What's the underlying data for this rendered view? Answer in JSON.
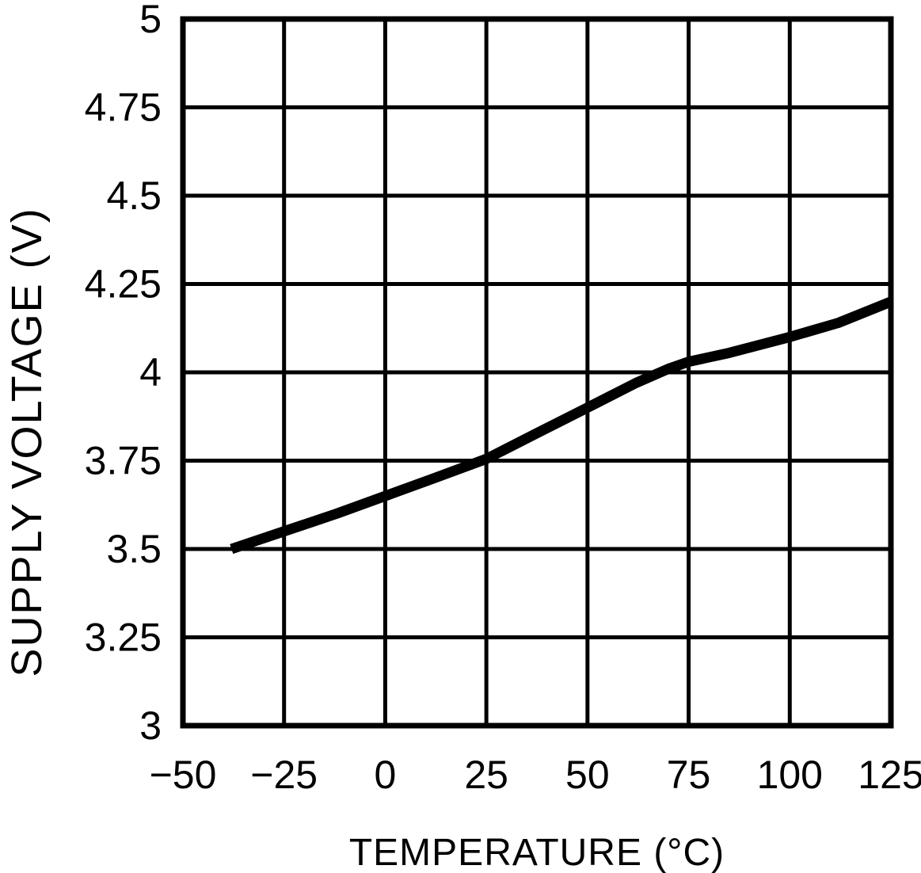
{
  "chart_data": {
    "type": "line",
    "title": "",
    "xlabel": "TEMPERATURE (°C)",
    "ylabel": "SUPPLY VOLTAGE (V)",
    "xlim": [
      -50,
      125
    ],
    "ylim": [
      3,
      5
    ],
    "grid": true,
    "legend_position": "none",
    "background_color": "#ffffff",
    "line_color": "#000000",
    "grid_color": "#000000",
    "x_ticks": [
      {
        "value": -50,
        "label": "−50"
      },
      {
        "value": -25,
        "label": "−25"
      },
      {
        "value": 0,
        "label": "0"
      },
      {
        "value": 25,
        "label": "25"
      },
      {
        "value": 50,
        "label": "50"
      },
      {
        "value": 75,
        "label": "75"
      },
      {
        "value": 100,
        "label": "100"
      },
      {
        "value": 125,
        "label": "125"
      }
    ],
    "y_ticks": [
      {
        "value": 3,
        "label": "3"
      },
      {
        "value": 3.25,
        "label": "3.25"
      },
      {
        "value": 3.5,
        "label": "3.5"
      },
      {
        "value": 3.75,
        "label": "3.75"
      },
      {
        "value": 4,
        "label": "4"
      },
      {
        "value": 4.25,
        "label": "4.25"
      },
      {
        "value": 4.5,
        "label": "4.5"
      },
      {
        "value": 4.75,
        "label": "4.75"
      },
      {
        "value": 5,
        "label": "5"
      }
    ],
    "series": [
      {
        "name": "supply_voltage_vs_temperature",
        "color": "#000000",
        "points": [
          [
            -38,
            3.5
          ],
          [
            -25,
            3.55
          ],
          [
            -12,
            3.6
          ],
          [
            0,
            3.65
          ],
          [
            12,
            3.7
          ],
          [
            25,
            3.755
          ],
          [
            37,
            3.825
          ],
          [
            50,
            3.9
          ],
          [
            62,
            3.97
          ],
          [
            70,
            4.01
          ],
          [
            75,
            4.03
          ],
          [
            85,
            4.055
          ],
          [
            100,
            4.1
          ],
          [
            112,
            4.14
          ],
          [
            125,
            4.2
          ]
        ]
      }
    ]
  }
}
